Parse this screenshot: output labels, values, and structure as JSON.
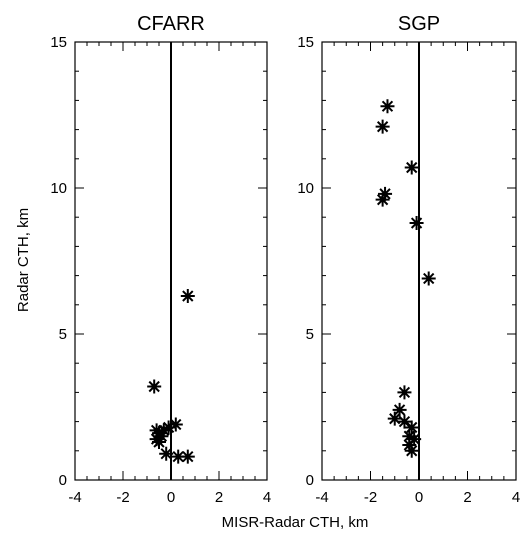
{
  "chart_data": [
    {
      "type": "scatter",
      "title": "CFARR",
      "xlabel": "MISR-Radar CTH, km",
      "ylabel": "Radar CTH, km",
      "xlim": [
        -4,
        4
      ],
      "ylim": [
        0,
        15
      ],
      "xticks": [
        "-4",
        "-2",
        "0",
        "2",
        "4"
      ],
      "yticks": [
        "0",
        "5",
        "10",
        "15"
      ],
      "marker": "asterisk",
      "reference_line_x": 0,
      "series": [
        {
          "points": [
            {
              "x": 0.7,
              "y": 6.3
            },
            {
              "x": -0.7,
              "y": 3.2
            },
            {
              "x": 0.2,
              "y": 1.9
            },
            {
              "x": -0.1,
              "y": 1.8
            },
            {
              "x": -0.3,
              "y": 1.7
            },
            {
              "x": -0.6,
              "y": 1.7
            },
            {
              "x": -0.5,
              "y": 1.6
            },
            {
              "x": -0.4,
              "y": 1.5
            },
            {
              "x": -0.6,
              "y": 1.4
            },
            {
              "x": -0.5,
              "y": 1.3
            },
            {
              "x": -0.2,
              "y": 0.9
            },
            {
              "x": 0.3,
              "y": 0.8
            },
            {
              "x": 0.7,
              "y": 0.8
            }
          ]
        }
      ]
    },
    {
      "type": "scatter",
      "title": "SGP",
      "xlim": [
        -4,
        4
      ],
      "ylim": [
        0,
        15
      ],
      "xticks": [
        "-4",
        "-2",
        "0",
        "2",
        "4"
      ],
      "yticks": [
        "0",
        "5",
        "10",
        "15"
      ],
      "marker": "asterisk",
      "reference_line_x": 0,
      "series": [
        {
          "points": [
            {
              "x": -1.3,
              "y": 12.8
            },
            {
              "x": -1.5,
              "y": 12.1
            },
            {
              "x": -0.3,
              "y": 10.7
            },
            {
              "x": -1.4,
              "y": 9.8
            },
            {
              "x": -1.5,
              "y": 9.6
            },
            {
              "x": -0.1,
              "y": 8.8
            },
            {
              "x": 0.4,
              "y": 6.9
            },
            {
              "x": -0.6,
              "y": 3.0
            },
            {
              "x": -0.8,
              "y": 2.4
            },
            {
              "x": -1.0,
              "y": 2.1
            },
            {
              "x": -0.6,
              "y": 2.0
            },
            {
              "x": -0.3,
              "y": 1.8
            },
            {
              "x": -0.4,
              "y": 1.5
            },
            {
              "x": -0.2,
              "y": 1.4
            },
            {
              "x": -0.4,
              "y": 1.2
            },
            {
              "x": -0.3,
              "y": 1.0
            }
          ]
        }
      ]
    }
  ]
}
